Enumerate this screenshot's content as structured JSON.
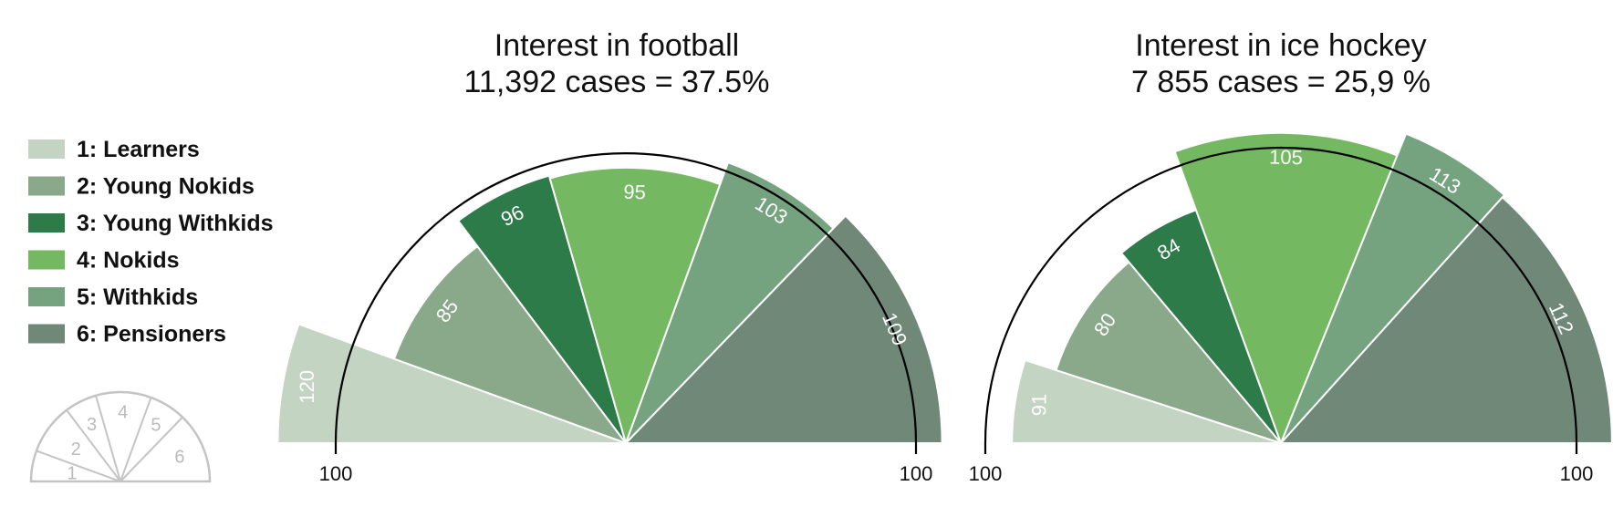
{
  "legend": {
    "items": [
      {
        "label": "1: Learners",
        "color": "#c4d4c2"
      },
      {
        "label": "2: Young Nokids",
        "color": "#8aa98a"
      },
      {
        "label": "3: Young Withkids",
        "color": "#2e7b4a"
      },
      {
        "label": "4: Nokids",
        "color": "#74b862"
      },
      {
        "label": "5: Withkids",
        "color": "#76a37f"
      },
      {
        "label": "6: Pensioners",
        "color": "#708877"
      }
    ]
  },
  "key_diagram": {
    "labels": [
      "1",
      "2",
      "3",
      "4",
      "5",
      "6"
    ]
  },
  "chart_data": [
    {
      "type": "polar-area",
      "title": "Interest in football",
      "subtitle": "11,392 cases = 37.5%",
      "categories": [
        "1: Learners",
        "2: Young Nokids",
        "3: Young Withkids",
        "4: Nokids",
        "5: Withkids",
        "6: Pensioners"
      ],
      "values": [
        120,
        85,
        96,
        95,
        103,
        109
      ],
      "angles_deg": [
        180,
        160,
        127,
        106,
        70,
        46,
        0
      ],
      "reference_value": 100,
      "reference_labels": [
        "100",
        "100"
      ],
      "data_labels": [
        "120",
        "85",
        "96",
        "95",
        "103",
        "109"
      ]
    },
    {
      "type": "polar-area",
      "title": "Interest in ice hockey",
      "subtitle": "7 855 cases = 25,9 %",
      "categories": [
        "1: Learners",
        "2: Young Nokids",
        "3: Young Withkids",
        "4: Nokids",
        "5: Withkids",
        "6: Pensioners"
      ],
      "values": [
        91,
        80,
        84,
        105,
        113,
        112
      ],
      "angles_deg": [
        180,
        162,
        130,
        110,
        68,
        48,
        0
      ],
      "reference_value": 100,
      "reference_labels": [
        "100",
        "100"
      ],
      "data_labels": [
        "91",
        "80",
        "84",
        "105",
        "113",
        "112"
      ]
    }
  ]
}
